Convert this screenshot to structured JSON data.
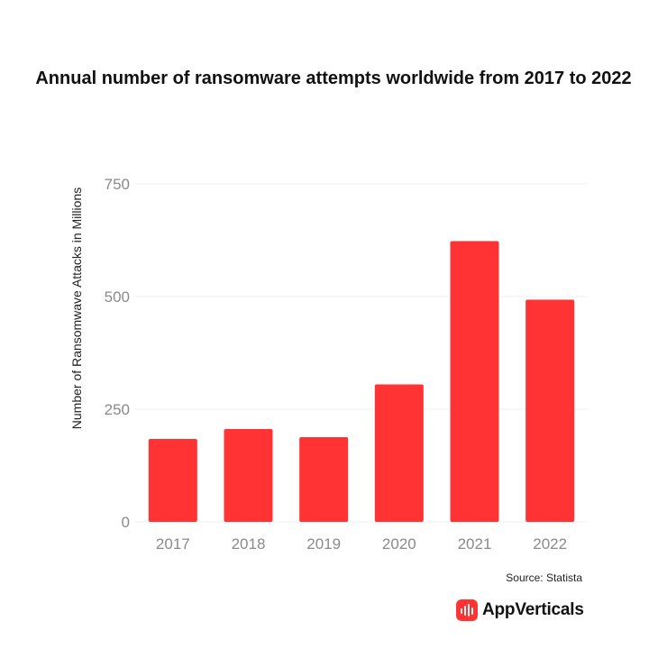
{
  "chart_data": {
    "type": "bar",
    "title": "Annual number of ransomware attempts worldwide from 2017 to 2022",
    "categories": [
      "2017",
      "2018",
      "2019",
      "2020",
      "2021",
      "2022"
    ],
    "values": [
      184,
      206,
      188,
      305,
      623,
      493
    ],
    "xlabel": "",
    "ylabel": "Number of Ransomwave Attacks in Millions",
    "ylim": [
      0,
      750
    ],
    "yticks": [
      0,
      250,
      500,
      750
    ],
    "ytick_labels": [
      "0",
      "250",
      "500",
      "750"
    ],
    "grid": true,
    "bar_color": "#ff3333"
  },
  "footer": {
    "source": "Source: Statista",
    "brand": "AppVerticals",
    "brand_icon": "appverticals-logo-icon",
    "brand_color": "#ff3333"
  }
}
